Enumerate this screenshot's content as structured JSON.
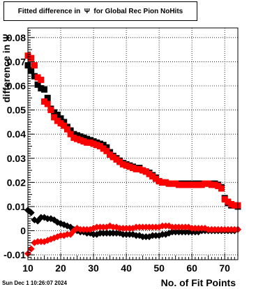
{
  "chart_data": {
    "type": "scatter",
    "title": "Fitted difference in  Ψ  for Global Rec Pion NoHits",
    "xlabel": "No. of Fit Points",
    "ylabel": "difference in Ψ",
    "xlim": [
      10,
      74
    ],
    "ylim": [
      -0.012,
      0.084
    ],
    "x_ticks": [
      "10",
      "20",
      "30",
      "40",
      "50",
      "60",
      "70"
    ],
    "y_ticks": [
      "-0.01",
      "0",
      "0.01",
      "0.02",
      "0.03",
      "0.04",
      "0.05",
      "0.06",
      "0.07",
      "0.08"
    ],
    "grid": true,
    "x": [
      10,
      11,
      12,
      13,
      14,
      15,
      16,
      17,
      18,
      19,
      20,
      21,
      22,
      23,
      24,
      25,
      26,
      27,
      28,
      29,
      30,
      31,
      32,
      33,
      34,
      35,
      36,
      37,
      38,
      39,
      40,
      41,
      42,
      43,
      44,
      45,
      46,
      47,
      48,
      49,
      50,
      51,
      52,
      53,
      54,
      55,
      56,
      57,
      58,
      59,
      60,
      61,
      62,
      63,
      64,
      65,
      66,
      67,
      68,
      69,
      70,
      71,
      72,
      73,
      74
    ],
    "series": [
      {
        "color": "#000000",
        "marker": "square",
        "values": [
          0.0685,
          0.0665,
          0.064,
          0.0605,
          0.059,
          0.0585,
          0.055,
          0.0505,
          0.049,
          0.048,
          0.0465,
          0.045,
          0.043,
          0.0415,
          0.04,
          0.0395,
          0.039,
          0.0385,
          0.038,
          0.0375,
          0.037,
          0.0365,
          0.036,
          0.0355,
          0.0345,
          0.0325,
          0.031,
          0.03,
          0.029,
          0.028,
          0.0275,
          0.027,
          0.0265,
          0.026,
          0.026,
          0.025,
          0.0245,
          0.024,
          0.023,
          0.022,
          0.0205,
          0.02,
          0.02,
          0.0195,
          0.0195,
          0.0195,
          0.0195,
          0.0195,
          0.0195,
          0.0195,
          0.0195,
          0.0195,
          0.0195,
          0.0195,
          0.0195,
          0.0195,
          0.0195,
          0.0195,
          0.019,
          0.018,
          0.0135,
          0.0115,
          0.0105,
          0.0105,
          0.01
        ]
      },
      {
        "color": "#ff0000",
        "marker": "square",
        "values": [
          0.0725,
          0.0715,
          0.0685,
          0.0635,
          0.0625,
          0.0535,
          0.0525,
          0.05,
          0.047,
          0.0455,
          0.0445,
          0.0435,
          0.042,
          0.04,
          0.0385,
          0.038,
          0.0375,
          0.037,
          0.0365,
          0.0365,
          0.036,
          0.0355,
          0.035,
          0.034,
          0.033,
          0.0315,
          0.0305,
          0.0295,
          0.0285,
          0.0275,
          0.027,
          0.0265,
          0.026,
          0.0255,
          0.0255,
          0.025,
          0.0245,
          0.0235,
          0.0225,
          0.0215,
          0.0205,
          0.02,
          0.02,
          0.0195,
          0.0195,
          0.0195,
          0.019,
          0.019,
          0.019,
          0.019,
          0.019,
          0.019,
          0.019,
          0.019,
          0.0195,
          0.0195,
          0.019,
          0.019,
          0.0185,
          0.0175,
          0.013,
          0.012,
          0.011,
          0.0105,
          0.0105
        ]
      },
      {
        "color": "#000000",
        "marker": "diamond",
        "values": [
          0.0085,
          0.0075,
          0.0045,
          0.004,
          0.0055,
          0.0055,
          0.005,
          0.005,
          0.0045,
          0.0035,
          0.003,
          0.0025,
          0.002,
          0.0015,
          0.0005,
          0.0,
          -0.0005,
          -0.0005,
          -0.001,
          -0.001,
          -0.0015,
          -0.0015,
          -0.001,
          -0.001,
          -0.001,
          -0.001,
          -0.001,
          -0.001,
          -0.001,
          -0.0015,
          -0.0015,
          -0.0015,
          -0.0015,
          -0.002,
          -0.002,
          -0.0025,
          -0.0025,
          -0.0025,
          -0.002,
          -0.002,
          -0.002,
          -0.0015,
          -0.0015,
          -0.001,
          -0.0005,
          -0.0005,
          -0.0005,
          -0.0005,
          -0.0005,
          -0.0005,
          -0.0005,
          -0.0005,
          -0.0005,
          0.0,
          0.0,
          0.0,
          0.0,
          0.0,
          0.0,
          0.0,
          0.0,
          0.0,
          0.0,
          0.0,
          0.0005
        ]
      },
      {
        "color": "#ff0000",
        "marker": "diamond",
        "values": [
          -0.0095,
          -0.0075,
          -0.005,
          -0.0045,
          -0.0045,
          -0.0045,
          -0.004,
          -0.0035,
          -0.003,
          -0.0025,
          -0.002,
          -0.002,
          -0.0015,
          -0.0015,
          0.0,
          0.001,
          0.0005,
          0.0005,
          0.0005,
          0.0005,
          0.001,
          0.0015,
          0.0015,
          0.0015,
          0.0015,
          0.002,
          0.0015,
          0.0015,
          0.001,
          0.001,
          0.001,
          0.001,
          0.001,
          0.0015,
          0.0015,
          0.0015,
          0.0015,
          0.0015,
          0.0015,
          0.0015,
          0.0015,
          0.002,
          0.002,
          0.002,
          0.0015,
          0.0015,
          0.0015,
          0.0015,
          0.0015,
          0.0015,
          0.001,
          0.001,
          0.001,
          0.001,
          0.001,
          0.0005,
          0.0005,
          0.0005,
          0.0005,
          0.0005,
          0.0005,
          0.0005,
          0.0005,
          0.0005,
          0.0005
        ]
      }
    ]
  },
  "footer": {
    "timestamp": "Sun Dec  1 10:26:07 2024"
  }
}
